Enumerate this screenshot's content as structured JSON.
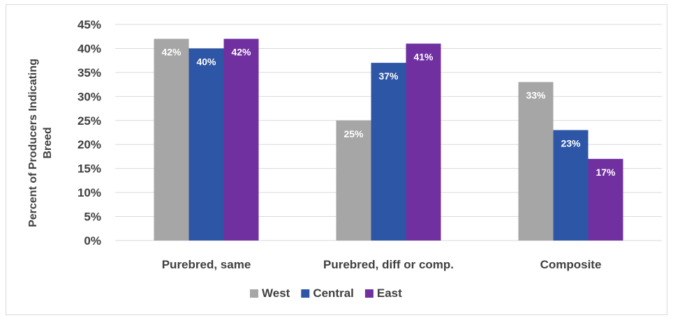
{
  "chart_data": {
    "type": "bar",
    "title": "",
    "xlabel": "",
    "ylabel": "Percent of Producers Indicating Breed",
    "ylim": [
      0,
      45
    ],
    "y_ticks": [
      "0%",
      "5%",
      "10%",
      "15%",
      "20%",
      "25%",
      "30%",
      "35%",
      "40%",
      "45%"
    ],
    "grid": true,
    "legend_position": "bottom",
    "categories": [
      "Purebred, same",
      "Purebred, diff or comp.",
      "Composite"
    ],
    "series": [
      {
        "name": "West",
        "color": "#a6a6a6",
        "values": [
          42,
          25,
          33
        ],
        "labels": [
          "42%",
          "25%",
          "33%"
        ]
      },
      {
        "name": "Central",
        "color": "#2e56a6",
        "values": [
          40,
          37,
          23
        ],
        "labels": [
          "40%",
          "37%",
          "23%"
        ]
      },
      {
        "name": "East",
        "color": "#7030a0",
        "values": [
          42,
          41,
          17
        ],
        "labels": [
          "42%",
          "41%",
          "17%"
        ]
      }
    ]
  }
}
